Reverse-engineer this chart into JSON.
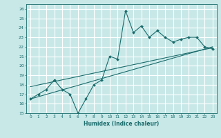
{
  "xlabel": "Humidex (Indice chaleur)",
  "background_color": "#c8e8e8",
  "grid_color": "#ffffff",
  "line_color": "#1a6b6b",
  "xlim": [
    -0.5,
    23.5
  ],
  "ylim": [
    15,
    26.5
  ],
  "yticks": [
    15,
    16,
    17,
    18,
    19,
    20,
    21,
    22,
    23,
    24,
    25,
    26
  ],
  "xticks": [
    0,
    1,
    2,
    3,
    4,
    5,
    6,
    7,
    8,
    9,
    10,
    11,
    12,
    13,
    14,
    15,
    16,
    17,
    18,
    19,
    20,
    21,
    22,
    23
  ],
  "jagged_x": [
    0,
    1,
    2,
    3,
    4,
    5,
    6,
    7,
    8,
    9,
    10,
    11,
    12,
    13,
    14,
    15,
    16,
    17,
    18,
    19,
    20,
    21,
    22,
    23
  ],
  "jagged_y": [
    16.5,
    17.0,
    17.5,
    18.5,
    17.5,
    17.0,
    15.0,
    16.5,
    18.0,
    18.5,
    21.0,
    20.7,
    25.8,
    23.5,
    24.2,
    23.0,
    23.7,
    23.0,
    22.5,
    22.8,
    23.0,
    23.0,
    22.0,
    21.8
  ],
  "trend1_x": [
    0,
    23
  ],
  "trend1_y": [
    16.5,
    22.0
  ],
  "trend2_x": [
    0,
    23
  ],
  "trend2_y": [
    17.8,
    21.9
  ]
}
